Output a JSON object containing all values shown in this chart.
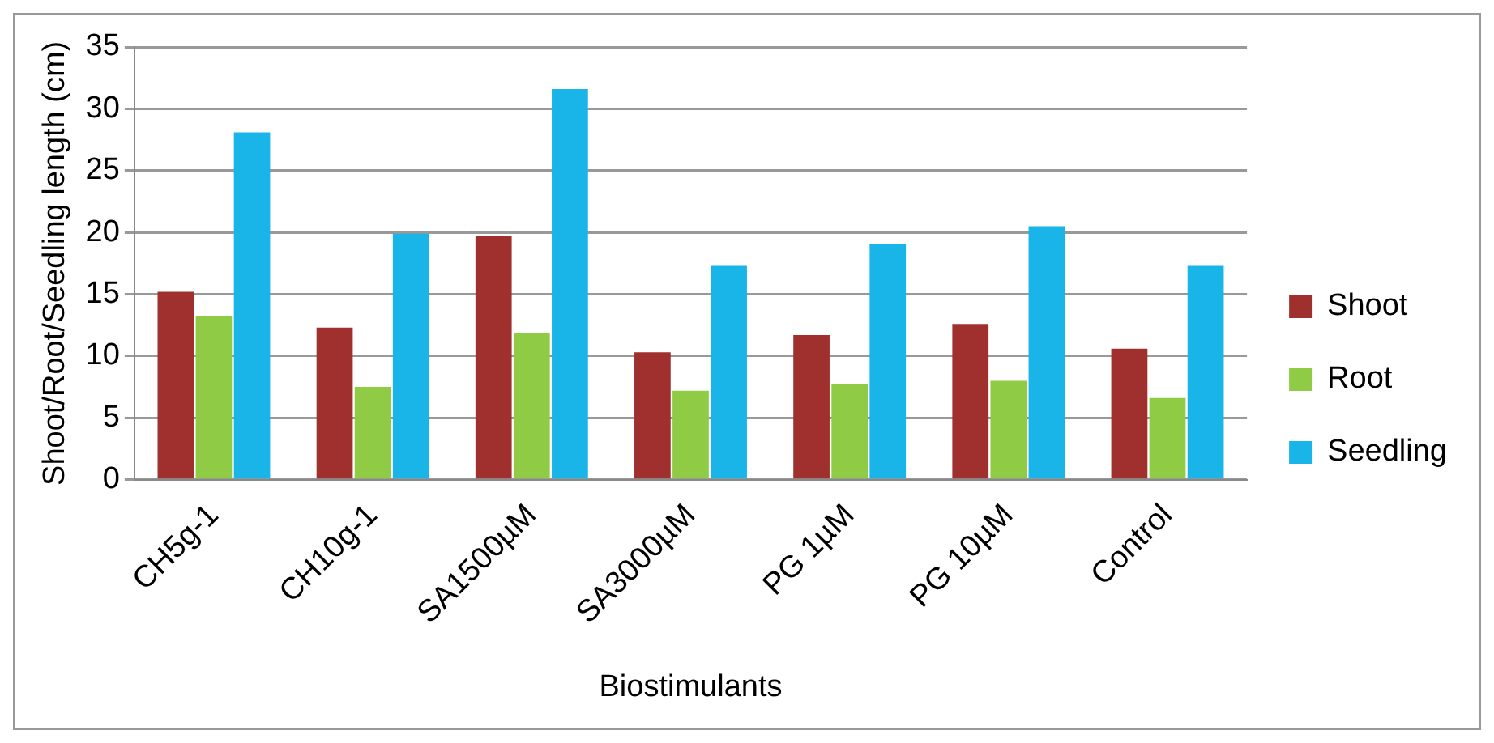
{
  "chart_data": {
    "type": "bar",
    "xlabel": "Biostimulants",
    "ylabel": "Shoot/Root/Seedling length (cm)",
    "categories": [
      "CH5g-1",
      "CH10g-1",
      "SA1500µM",
      "SA3000µM",
      "PG 1µM",
      "PG 10µM",
      "Control"
    ],
    "series": [
      {
        "name": "Shoot",
        "color": "#a0302e",
        "values": [
          15.2,
          12.3,
          19.7,
          10.3,
          11.7,
          12.6,
          10.6
        ]
      },
      {
        "name": "Root",
        "color": "#8fcb45",
        "values": [
          13.2,
          7.5,
          11.9,
          7.2,
          7.7,
          8.0,
          6.6
        ]
      },
      {
        "name": "Seedling",
        "color": "#19b5e8",
        "values": [
          28.1,
          19.9,
          31.6,
          17.3,
          19.1,
          20.5,
          17.3
        ]
      }
    ],
    "ylim": [
      0,
      35
    ],
    "yticks": [
      0,
      5,
      10,
      15,
      20,
      25,
      30,
      35
    ],
    "grid": "y",
    "legend": "right"
  }
}
